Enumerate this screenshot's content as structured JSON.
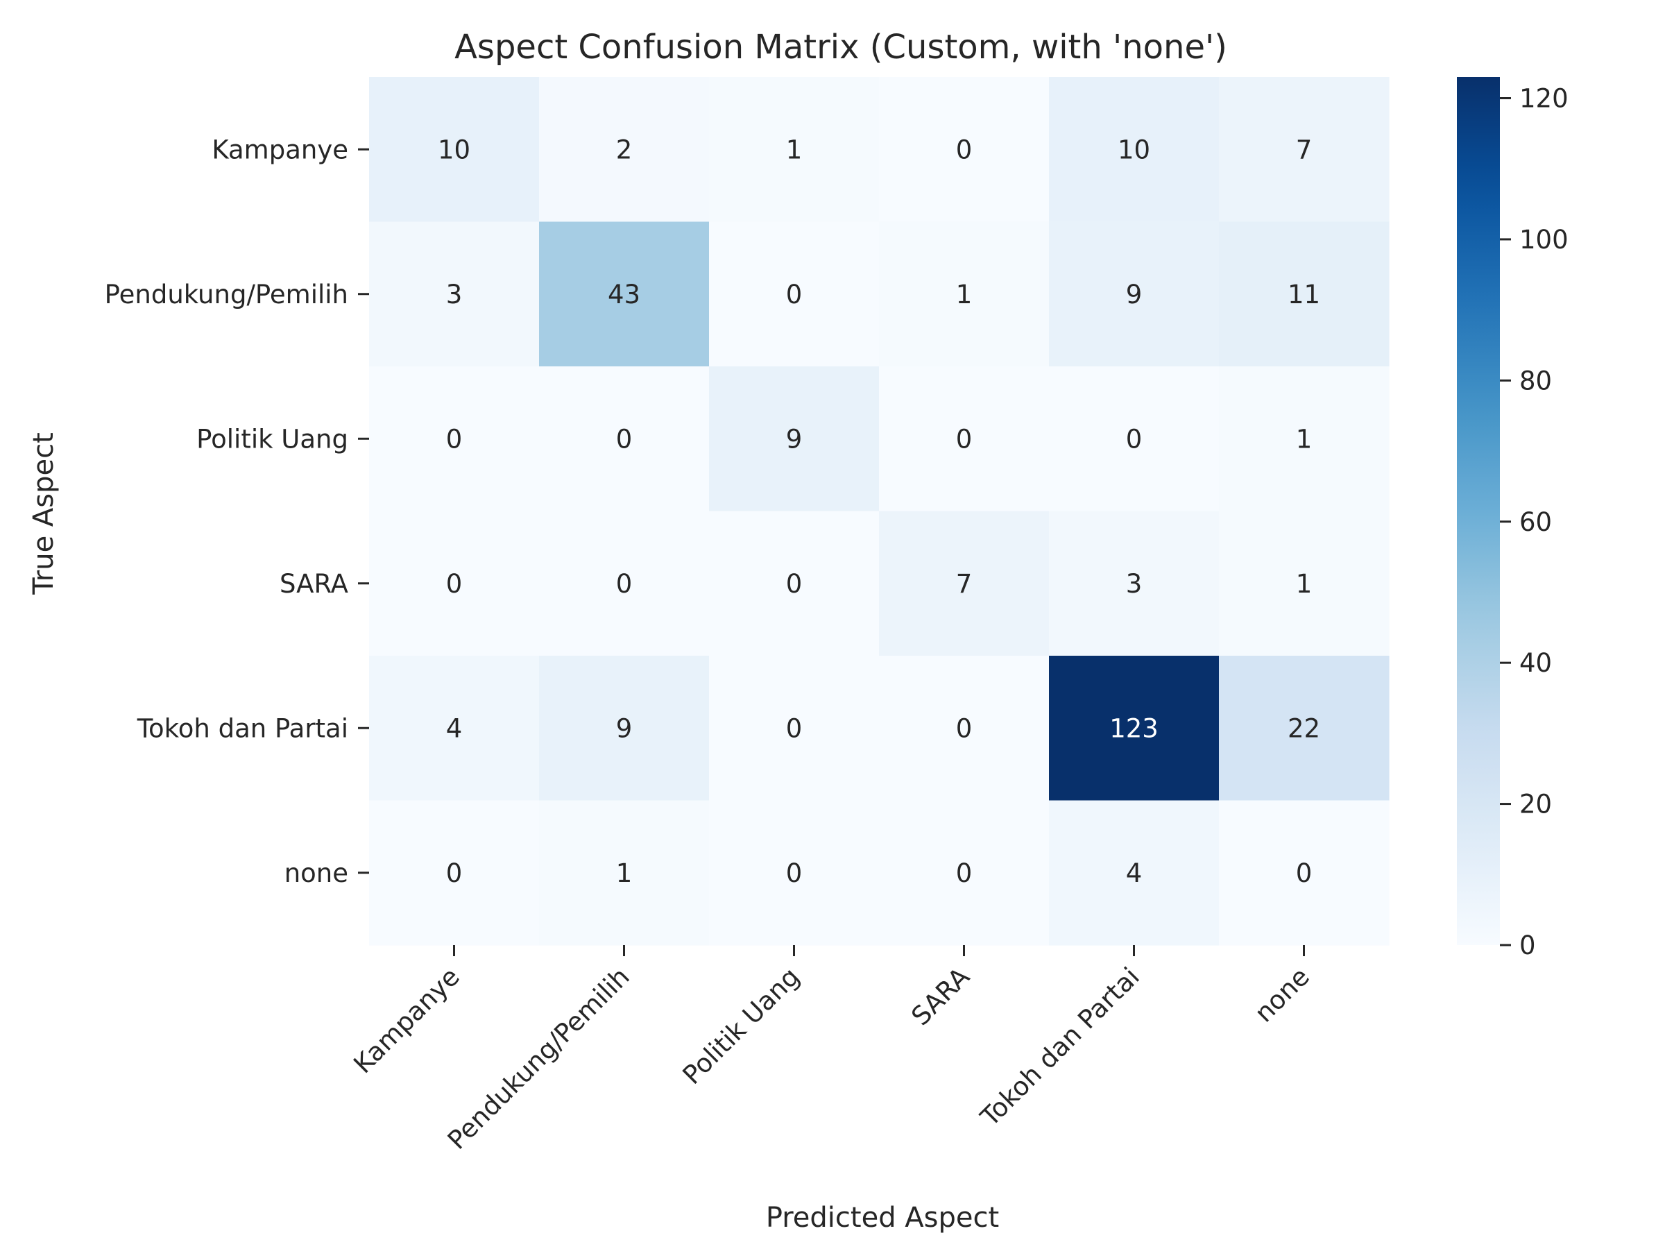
{
  "chart_data": {
    "type": "heatmap",
    "title": "Aspect Confusion Matrix (Custom, with 'none')",
    "xlabel": "Predicted Aspect",
    "ylabel": "True Aspect",
    "x_categories": [
      "Kampanye",
      "Pendukung/Pemilih",
      "Politik Uang",
      "SARA",
      "Tokoh dan Partai",
      "none"
    ],
    "y_categories": [
      "Kampanye",
      "Pendukung/Pemilih",
      "Politik Uang",
      "SARA",
      "Tokoh dan Partai",
      "none"
    ],
    "values": [
      [
        10,
        2,
        1,
        0,
        10,
        7
      ],
      [
        3,
        43,
        0,
        1,
        9,
        11
      ],
      [
        0,
        0,
        9,
        0,
        0,
        1
      ],
      [
        0,
        0,
        0,
        7,
        3,
        1
      ],
      [
        4,
        9,
        0,
        0,
        123,
        22
      ],
      [
        0,
        1,
        0,
        0,
        4,
        0
      ]
    ],
    "colorbar": {
      "colormap": "Blues",
      "range": [
        0,
        123
      ],
      "ticks": [
        0,
        20,
        40,
        60,
        80,
        100,
        120
      ],
      "low_color": "#f7fbff",
      "high_color": "#08306b"
    },
    "annotated": true,
    "grid": false,
    "legend": "colorbar-right"
  }
}
